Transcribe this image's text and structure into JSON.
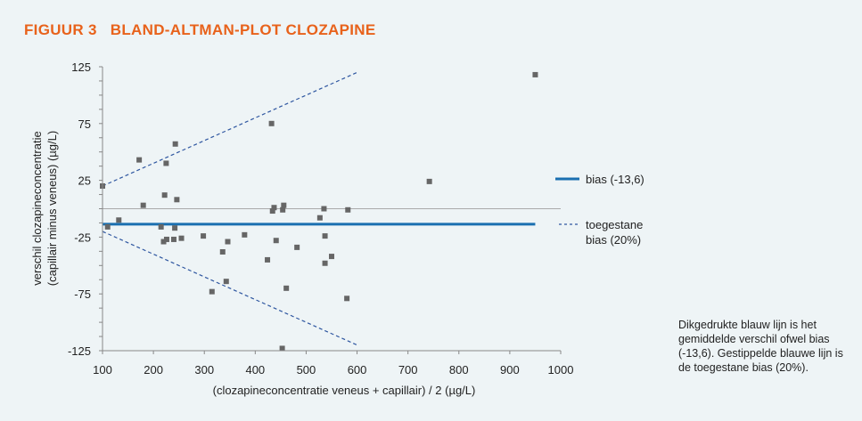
{
  "figure_label": "FIGUUR 3",
  "figure_title": "BLAND-ALTMAN-PLOT CLOZAPINE",
  "caption": "Dikgedrukte blauw lijn is het gemiddelde verschil ofwel bias (-13,6). Gestippelde blauwe lijn is de toegestane bias (20%).",
  "colors": {
    "title": "#e8621b",
    "bias_line": "#1a6fb0",
    "limit_line": "#2e56a0",
    "points": "#666666",
    "zero_line": "#aaaaaa"
  },
  "chart_data": {
    "type": "scatter",
    "xlabel": "(clozapineconcentratie veneus + capillair) / 2 (µg/L)",
    "ylabel_line1": "verschil clozapineconcentratie",
    "ylabel_line2": "(capillair minus veneus) (µg/L)",
    "xlim": [
      100,
      1000
    ],
    "ylim": [
      -125,
      125
    ],
    "x_ticks": [
      100,
      200,
      300,
      400,
      500,
      600,
      700,
      800,
      900,
      1000
    ],
    "y_ticks": [
      125,
      75,
      25,
      -25,
      -75,
      -125
    ],
    "bias": -13.6,
    "limits": {
      "upper": [
        [
          100,
          20
        ],
        [
          600,
          120
        ]
      ],
      "lower": [
        [
          100,
          -20
        ],
        [
          600,
          -120
        ]
      ]
    },
    "legend": {
      "bias_label": "bias (-13,6)",
      "limit_label_line1": "toegestane",
      "limit_label_line2": "bias (20%)"
    },
    "points": [
      [
        100,
        20
      ],
      [
        110,
        -16
      ],
      [
        132,
        -10
      ],
      [
        172,
        43
      ],
      [
        180,
        3
      ],
      [
        215,
        -16
      ],
      [
        220,
        -29
      ],
      [
        222,
        12
      ],
      [
        225,
        40
      ],
      [
        226,
        -27
      ],
      [
        240,
        -27
      ],
      [
        242,
        -17
      ],
      [
        243,
        57
      ],
      [
        246,
        8
      ],
      [
        255,
        -26
      ],
      [
        298,
        -24
      ],
      [
        315,
        -73
      ],
      [
        336,
        -38
      ],
      [
        343,
        -64
      ],
      [
        346,
        -29
      ],
      [
        379,
        -23
      ],
      [
        424,
        -45
      ],
      [
        432,
        75
      ],
      [
        434,
        -2
      ],
      [
        437,
        1
      ],
      [
        441,
        -28
      ],
      [
        453,
        -123
      ],
      [
        454,
        -1
      ],
      [
        456,
        3
      ],
      [
        461,
        -70
      ],
      [
        482,
        -34
      ],
      [
        527,
        -8
      ],
      [
        535,
        0
      ],
      [
        537,
        -48
      ],
      [
        537,
        -24
      ],
      [
        550,
        -42
      ],
      [
        580,
        -79
      ],
      [
        582,
        -1
      ],
      [
        742,
        24
      ],
      [
        950,
        118
      ]
    ]
  }
}
